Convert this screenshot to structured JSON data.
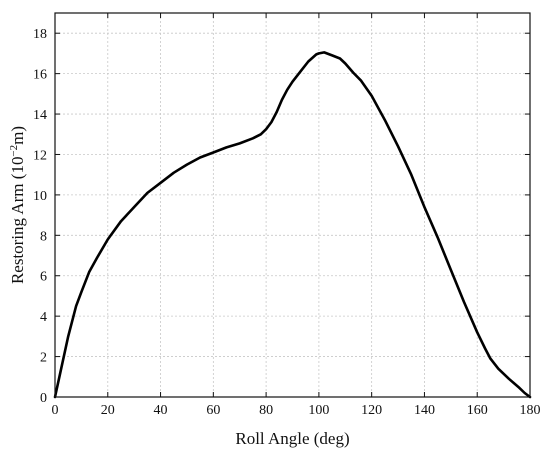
{
  "chart_data": {
    "type": "line",
    "title": "",
    "xlabel": "Roll Angle (deg)",
    "ylabel_base": "Restoring Arm (10",
    "ylabel_exp": "−2",
    "ylabel_unit": "m)",
    "xlim": [
      0,
      180
    ],
    "ylim": [
      0,
      19
    ],
    "xticks": [
      "0",
      "20",
      "40",
      "60",
      "80",
      "100",
      "120",
      "140",
      "160",
      "180"
    ],
    "yticks": [
      "0",
      "2",
      "4",
      "6",
      "8",
      "10",
      "12",
      "14",
      "16",
      "18"
    ],
    "grid": true,
    "series": [
      {
        "color": "#000000",
        "x": [
          0,
          2,
          5,
          8,
          10,
          13,
          16,
          20,
          25,
          30,
          35,
          40,
          45,
          50,
          55,
          60,
          65,
          70,
          75,
          78,
          80,
          82,
          84,
          86,
          88,
          90,
          93,
          96,
          99,
          100,
          102,
          105,
          108,
          110,
          113,
          116,
          120,
          125,
          130,
          135,
          140,
          145,
          150,
          155,
          160,
          163,
          165,
          168,
          172,
          176,
          178,
          180
        ],
        "y": [
          0,
          1.2,
          3.0,
          4.5,
          5.2,
          6.2,
          6.9,
          7.8,
          8.7,
          9.4,
          10.1,
          10.6,
          11.1,
          11.5,
          11.85,
          12.1,
          12.35,
          12.55,
          12.8,
          13.0,
          13.25,
          13.6,
          14.1,
          14.7,
          15.2,
          15.6,
          16.1,
          16.6,
          16.95,
          17.0,
          17.05,
          16.9,
          16.75,
          16.5,
          16.05,
          15.65,
          14.9,
          13.7,
          12.4,
          11.0,
          9.4,
          7.9,
          6.3,
          4.7,
          3.2,
          2.4,
          1.9,
          1.4,
          0.9,
          0.45,
          0.2,
          0.0
        ]
      }
    ]
  }
}
